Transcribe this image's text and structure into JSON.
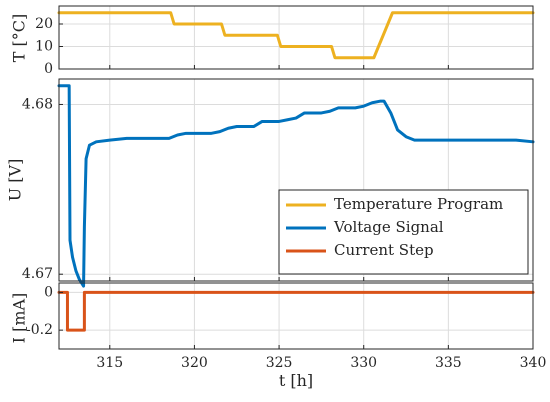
{
  "chart_data": [
    {
      "id": "temp",
      "type": "line",
      "ylabel": "T [°C]",
      "ylim": [
        0,
        28
      ],
      "yticks": [
        0,
        10,
        20
      ],
      "grid": true,
      "series": [
        {
          "name": "Temperature Program",
          "color": "#EDB120",
          "x": [
            312,
            318.6,
            318.8,
            321.6,
            321.8,
            324.9,
            325.1,
            328.1,
            328.3,
            330.6,
            331.7,
            340
          ],
          "y": [
            25,
            25,
            20,
            20,
            15,
            15,
            10,
            10,
            5,
            5,
            25,
            25
          ]
        }
      ]
    },
    {
      "id": "voltage",
      "type": "line",
      "ylabel": "U [V]",
      "ylim": [
        4.6696,
        4.6815
      ],
      "yticks": [
        4.67,
        4.68
      ],
      "grid": true,
      "legend_position": "bottom-right",
      "series": [
        {
          "name": "Voltage Signal",
          "color": "#0072BD",
          "x": [
            312,
            312.6,
            312.65,
            312.8,
            313,
            313.2,
            313.45,
            313.5,
            313.6,
            313.8,
            314.2,
            315,
            316,
            317,
            318,
            318.5,
            319,
            319.5,
            320,
            320.5,
            321,
            321.5,
            322,
            322.5,
            323,
            323.5,
            324,
            324.5,
            325,
            325.5,
            326,
            326.5,
            327,
            327.5,
            328,
            328.5,
            329,
            329.5,
            330,
            330.5,
            331,
            331.2,
            331.6,
            332,
            332.5,
            333,
            334,
            335,
            336,
            337,
            338,
            339,
            340
          ],
          "y": [
            4.6811,
            4.6811,
            4.672,
            4.671,
            4.6702,
            4.6697,
            4.6693,
            4.6728,
            4.6768,
            4.6776,
            4.6778,
            4.6779,
            4.678,
            4.678,
            4.678,
            4.678,
            4.6782,
            4.6783,
            4.6783,
            4.6783,
            4.6783,
            4.6784,
            4.6786,
            4.6787,
            4.6787,
            4.6787,
            4.679,
            4.679,
            4.679,
            4.6791,
            4.6792,
            4.6795,
            4.6795,
            4.6795,
            4.6796,
            4.6798,
            4.6798,
            4.6798,
            4.6799,
            4.6801,
            4.6802,
            4.6802,
            4.6795,
            4.6785,
            4.6781,
            4.6779,
            4.6779,
            4.6779,
            4.6779,
            4.6779,
            4.6779,
            4.6779,
            4.6778
          ]
        },
        {
          "name": "Current Step",
          "color": "#D95319",
          "legend_only": true
        }
      ]
    },
    {
      "id": "current",
      "type": "line",
      "ylabel": "I [mA]",
      "ylim": [
        -0.3,
        0.05
      ],
      "yticks": [
        -0.2,
        0
      ],
      "xlabel": "t [h]",
      "xlim": [
        312,
        340
      ],
      "xticks": [
        315,
        320,
        325,
        330,
        335,
        340
      ],
      "grid": true,
      "series": [
        {
          "name": "Current Step",
          "color": "#D95319",
          "x": [
            312,
            312.5,
            312.5,
            313.5,
            313.5,
            340
          ],
          "y": [
            0,
            0,
            -0.2,
            -0.2,
            0,
            0
          ]
        }
      ]
    }
  ],
  "legend": {
    "position": "bottom-right",
    "entries": [
      {
        "label": "Temperature Program",
        "color": "#EDB120"
      },
      {
        "label": "Voltage Signal",
        "color": "#0072BD"
      },
      {
        "label": "Current Step",
        "color": "#D95319"
      }
    ]
  }
}
